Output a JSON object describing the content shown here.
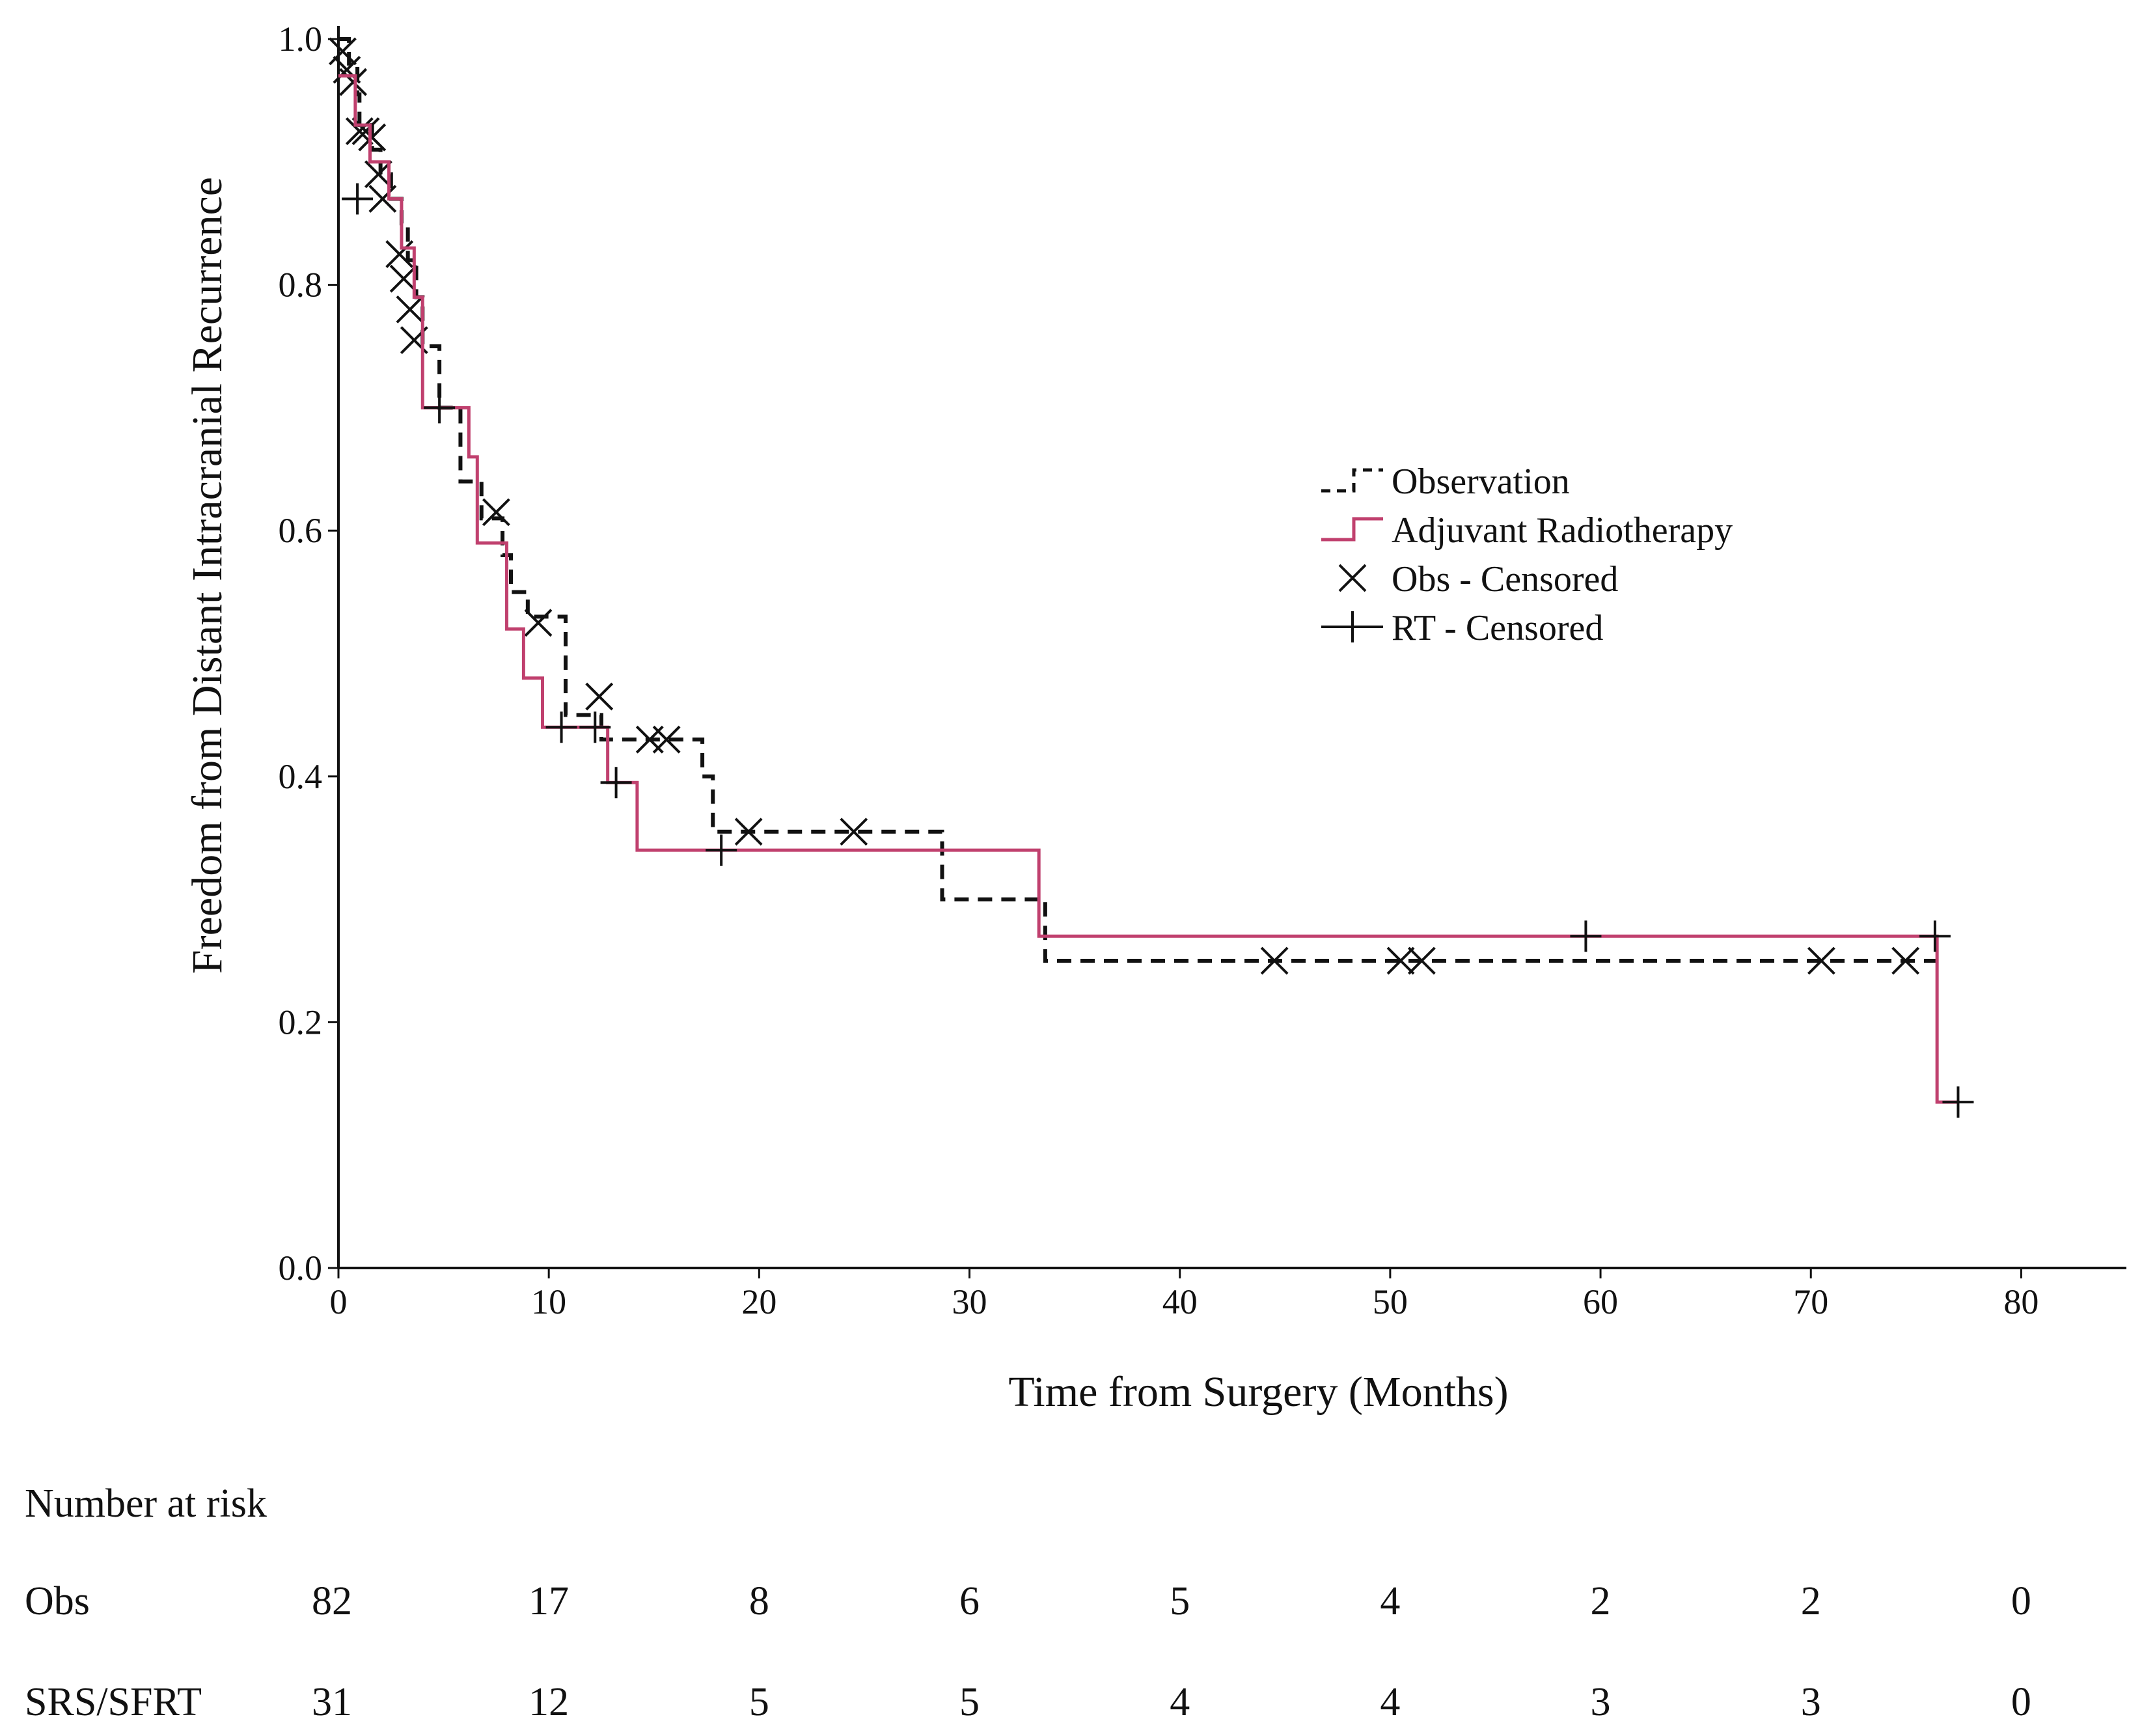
{
  "chart_data": {
    "type": "line",
    "subtype": "kaplan-meier",
    "title": "",
    "xlabel": "Time from Surgery (Months)",
    "ylabel": "Freedom from Distant Intracranial Recurrence",
    "xlim": [
      0,
      85
    ],
    "ylim": [
      0,
      1.0
    ],
    "x_ticks": [
      0,
      10,
      20,
      30,
      40,
      50,
      60,
      70,
      80
    ],
    "y_ticks": [
      0.0,
      0.2,
      0.4,
      0.6,
      0.8,
      1.0
    ],
    "x_tick_labels": [
      "0",
      "10",
      "20",
      "30",
      "40",
      "50",
      "60",
      "70",
      "80"
    ],
    "y_tick_labels": [
      "0.0",
      "0.2",
      "0.4",
      "0.6",
      "0.8",
      "1.0"
    ],
    "grid": false,
    "legend_position": "right-center",
    "series": [
      {
        "name": "Observation",
        "style": "dashed",
        "color": "#111111",
        "steps": [
          [
            0,
            1.0
          ],
          [
            0.5,
            0.98
          ],
          [
            0.9,
            0.955
          ],
          [
            1.0,
            0.93
          ],
          [
            1.6,
            0.91
          ],
          [
            2.0,
            0.89
          ],
          [
            2.5,
            0.87
          ],
          [
            3.0,
            0.85
          ],
          [
            3.3,
            0.82
          ],
          [
            3.7,
            0.79
          ],
          [
            4.0,
            0.75
          ],
          [
            4.8,
            0.7
          ],
          [
            5.8,
            0.64
          ],
          [
            6.8,
            0.61
          ],
          [
            7.8,
            0.58
          ],
          [
            8.2,
            0.55
          ],
          [
            9.0,
            0.53
          ],
          [
            10.8,
            0.45
          ],
          [
            12.5,
            0.43
          ],
          [
            17.3,
            0.4
          ],
          [
            17.8,
            0.355
          ],
          [
            28.7,
            0.3
          ],
          [
            33.6,
            0.25
          ],
          [
            76.0,
            0.25
          ]
        ],
        "censored": [
          [
            0.2,
            0.99
          ],
          [
            0.4,
            0.975
          ],
          [
            0.7,
            0.965
          ],
          [
            1.0,
            0.925
          ],
          [
            1.3,
            0.925
          ],
          [
            1.6,
            0.92
          ],
          [
            1.9,
            0.89
          ],
          [
            2.1,
            0.87
          ],
          [
            2.9,
            0.825
          ],
          [
            3.1,
            0.805
          ],
          [
            3.4,
            0.78
          ],
          [
            3.6,
            0.755
          ],
          [
            7.5,
            0.615
          ],
          [
            9.5,
            0.525
          ],
          [
            12.4,
            0.465
          ],
          [
            14.8,
            0.43
          ],
          [
            15.6,
            0.43
          ],
          [
            19.5,
            0.355
          ],
          [
            24.5,
            0.355
          ],
          [
            44.5,
            0.25
          ],
          [
            50.5,
            0.25
          ],
          [
            51.5,
            0.25
          ],
          [
            70.5,
            0.25
          ],
          [
            74.5,
            0.25
          ]
        ]
      },
      {
        "name": "Adjuvant Radiotherapy",
        "style": "solid",
        "color": "#c0406e",
        "steps": [
          [
            0,
            0.97
          ],
          [
            0.8,
            0.93
          ],
          [
            1.5,
            0.9
          ],
          [
            2.4,
            0.87
          ],
          [
            3.0,
            0.83
          ],
          [
            3.6,
            0.79
          ],
          [
            4.0,
            0.7
          ],
          [
            6.2,
            0.66
          ],
          [
            6.6,
            0.59
          ],
          [
            8.0,
            0.52
          ],
          [
            8.8,
            0.48
          ],
          [
            9.7,
            0.44
          ],
          [
            12.8,
            0.395
          ],
          [
            14.2,
            0.34
          ],
          [
            33.3,
            0.27
          ],
          [
            76.0,
            0.135
          ],
          [
            77.0,
            0.135
          ]
        ],
        "censored": [
          [
            0.9,
            0.87
          ],
          [
            4.8,
            0.7
          ],
          [
            10.6,
            0.44
          ],
          [
            12.2,
            0.44
          ],
          [
            13.2,
            0.395
          ],
          [
            18.2,
            0.34
          ],
          [
            59.3,
            0.27
          ],
          [
            75.9,
            0.27
          ],
          [
            77.0,
            0.135
          ]
        ]
      }
    ],
    "legend": [
      {
        "label": "Observation",
        "marker": "dashed-step"
      },
      {
        "label": "Adjuvant Radiotherapy",
        "marker": "solid-step"
      },
      {
        "label": "Obs - Censored",
        "marker": "x"
      },
      {
        "label": "RT - Censored",
        "marker": "plus"
      }
    ],
    "risk_table": {
      "title": "Number at risk",
      "times": [
        0,
        10,
        20,
        30,
        40,
        50,
        60,
        70,
        80
      ],
      "rows": [
        {
          "label": "Obs",
          "values": [
            "82",
            "17",
            "8",
            "6",
            "5",
            "4",
            "2",
            "2",
            "0"
          ]
        },
        {
          "label": "SRS/SFRT",
          "values": [
            "31",
            "12",
            "5",
            "5",
            "4",
            "4",
            "3",
            "3",
            "0"
          ]
        }
      ]
    }
  }
}
